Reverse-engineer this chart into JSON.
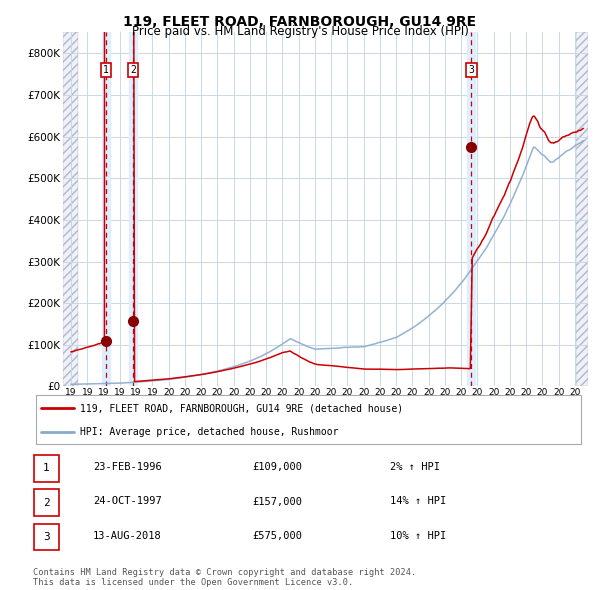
{
  "title": "119, FLEET ROAD, FARNBOROUGH, GU14 9RE",
  "subtitle": "Price paid vs. HM Land Registry's House Price Index (HPI)",
  "title_fontsize": 10,
  "subtitle_fontsize": 8.5,
  "xlim": [
    1993.5,
    2025.8
  ],
  "ylim": [
    0,
    850000
  ],
  "yticks": [
    0,
    100000,
    200000,
    300000,
    400000,
    500000,
    600000,
    700000,
    800000
  ],
  "ytick_labels": [
    "£0",
    "£100K",
    "£200K",
    "£300K",
    "£400K",
    "£500K",
    "£600K",
    "£700K",
    "£800K"
  ],
  "xtick_years": [
    1994,
    1995,
    1996,
    1997,
    1998,
    1999,
    2000,
    2001,
    2002,
    2003,
    2004,
    2005,
    2006,
    2007,
    2008,
    2009,
    2010,
    2011,
    2012,
    2013,
    2014,
    2015,
    2016,
    2017,
    2018,
    2019,
    2020,
    2021,
    2022,
    2023,
    2024,
    2025
  ],
  "sale_dates_dec": [
    1996.14,
    1997.81,
    2018.62
  ],
  "sale_prices": [
    109000,
    157000,
    575000
  ],
  "sale_labels": [
    "1",
    "2",
    "3"
  ],
  "red_line_color": "#cc0000",
  "blue_line_color": "#88aacc",
  "vline_color": "#cc0000",
  "vspan_color": "#ddeeff",
  "grid_color": "#c8d8e8",
  "bg_color": "#ffffff",
  "legend_label_red": "119, FLEET ROAD, FARNBOROUGH, GU14 9RE (detached house)",
  "legend_label_blue": "HPI: Average price, detached house, Rushmoor",
  "table_entries": [
    {
      "label": "1",
      "date": "23-FEB-1996",
      "price": "£109,000",
      "change": "2% ↑ HPI"
    },
    {
      "label": "2",
      "date": "24-OCT-1997",
      "price": "£157,000",
      "change": "14% ↑ HPI"
    },
    {
      "label": "3",
      "date": "13-AUG-2018",
      "price": "£575,000",
      "change": "10% ↑ HPI"
    }
  ],
  "footer_text": "Contains HM Land Registry data © Crown copyright and database right 2024.\nThis data is licensed under the Open Government Licence v3.0."
}
